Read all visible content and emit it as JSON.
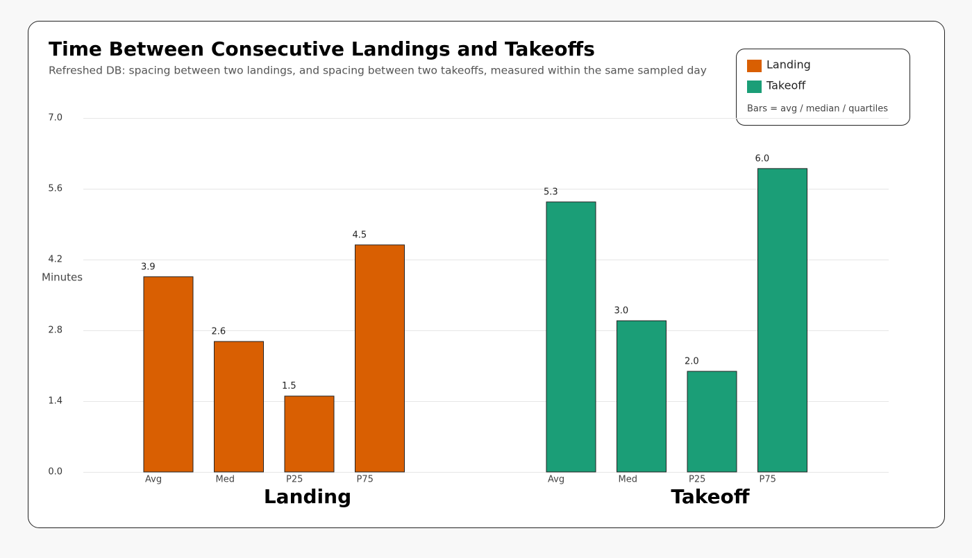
{
  "chart_data": {
    "type": "bar",
    "title": "Time Between Consecutive Landings and Takeoffs",
    "subtitle": "Refreshed DB: spacing between two landings, and spacing between two takeoffs, measured within the same sampled day",
    "y_label": "Minutes",
    "legend_note": "Bars = avg / median / quartiles",
    "categories": [
      "Avg",
      "Med",
      "P25",
      "P75"
    ],
    "series": [
      {
        "name": "Landing",
        "color": "#d95f02",
        "values": [
          3.86,
          2.58,
          1.5,
          4.49
        ],
        "value_labels": [
          "3.9",
          "2.6",
          "1.5",
          "4.5"
        ]
      },
      {
        "name": "Takeoff",
        "color": "#1b9e77",
        "values": [
          5.34,
          2.99,
          1.99,
          6.0
        ],
        "value_labels": [
          "5.3",
          "3.0",
          "2.0",
          "6.0"
        ]
      }
    ],
    "ylim": [
      0,
      7
    ],
    "yticks": [
      {
        "value": 0,
        "label": "0.0"
      },
      1.4,
      2.8,
      4.2,
      5.6,
      {
        "value": 7,
        "label": "7.0"
      }
    ],
    "grid": true,
    "legend": "upper right"
  }
}
